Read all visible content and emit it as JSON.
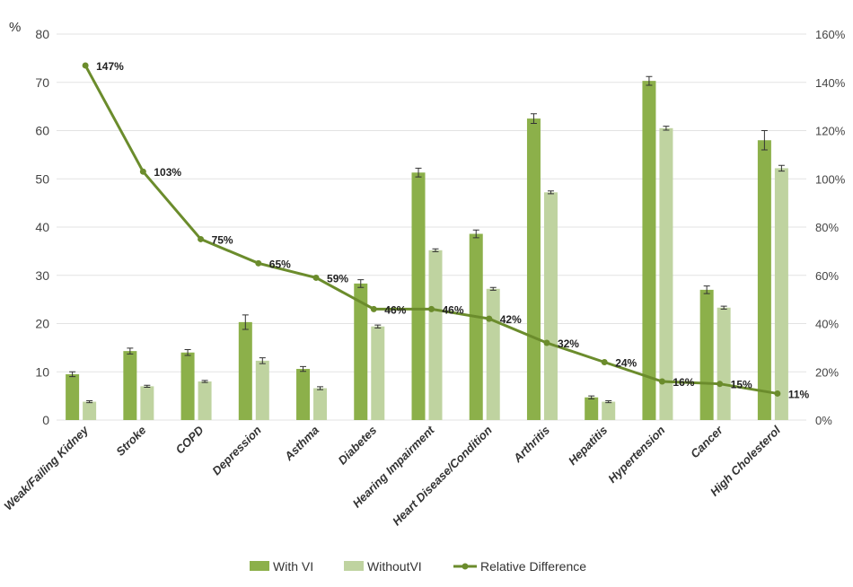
{
  "chart_data": {
    "type": "bar",
    "title": "",
    "ylabel": "%",
    "ylabel_right": "",
    "ylim": [
      0,
      80
    ],
    "yticks": [
      0,
      10,
      20,
      30,
      40,
      50,
      60,
      70,
      80
    ],
    "y2lim": [
      0,
      160
    ],
    "y2ticks": [
      "0%",
      "20%",
      "40%",
      "60%",
      "80%",
      "100%",
      "120%",
      "140%",
      "160%"
    ],
    "grid": true,
    "legend_position": "bottom",
    "categories": [
      "Weak/Failing Kidney",
      "Stroke",
      "COPD",
      "Depression",
      "Asthma",
      "Diabetes",
      "Hearing Impairment",
      "Heart Disease/Condition",
      "Arthritis",
      "Hepatitis",
      "Hypertension",
      "Cancer",
      "High Cholesterol"
    ],
    "series": [
      {
        "name": "With VI",
        "type": "bar",
        "color": "#8cb04a",
        "values": [
          9.5,
          14.3,
          14.0,
          20.3,
          10.6,
          28.3,
          51.3,
          38.6,
          62.5,
          4.7,
          70.3,
          27.0,
          58.0
        ],
        "error": [
          0.5,
          0.6,
          0.6,
          1.5,
          0.5,
          0.8,
          0.9,
          0.8,
          1.0,
          0.3,
          0.9,
          0.8,
          2.0
        ]
      },
      {
        "name": "WithoutVI",
        "type": "bar",
        "color": "#bfd3a0",
        "values": [
          3.8,
          7.0,
          8.0,
          12.3,
          6.6,
          19.4,
          35.2,
          27.2,
          47.2,
          3.8,
          60.5,
          23.3,
          52.2
        ],
        "error": [
          0.2,
          0.2,
          0.2,
          0.6,
          0.3,
          0.3,
          0.3,
          0.3,
          0.3,
          0.2,
          0.4,
          0.3,
          0.6
        ]
      },
      {
        "name": "Relative Difference",
        "type": "line",
        "axis": "right",
        "color": "#6b8c2c",
        "values": [
          147,
          103,
          75,
          65,
          59,
          46,
          46,
          42,
          32,
          24,
          16,
          15,
          11
        ],
        "labels": [
          "147%",
          "103%",
          "75%",
          "65%",
          "59%",
          "46%",
          "46%",
          "42%",
          "32%",
          "24%",
          "16%",
          "15%",
          "11%"
        ]
      }
    ]
  }
}
